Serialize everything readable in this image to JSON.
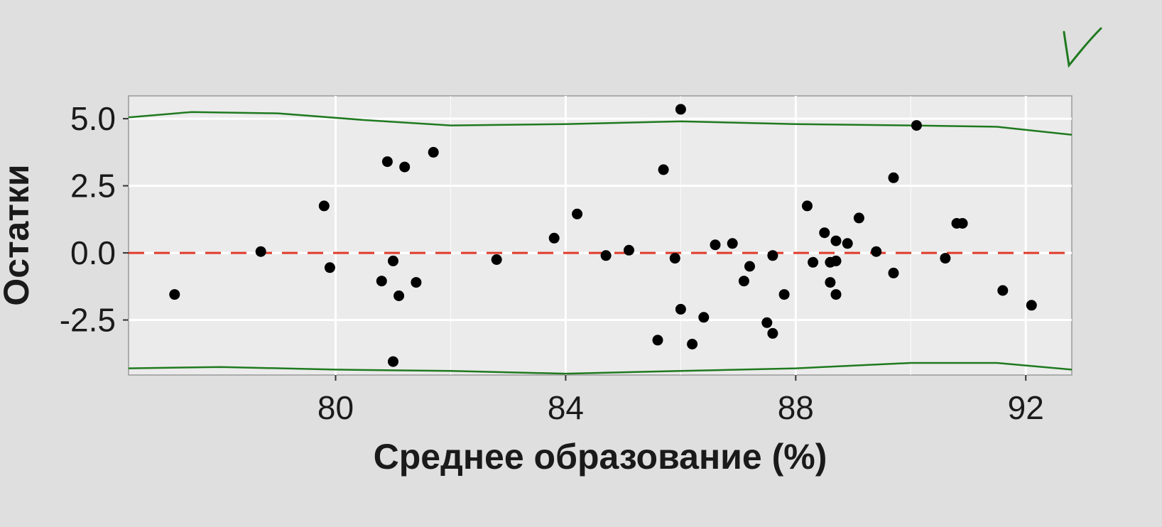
{
  "chart_data": {
    "type": "scatter",
    "title": "",
    "xlabel": "Среднее образование (%)",
    "ylabel": "Остатки",
    "xlim": [
      76.4,
      92.8
    ],
    "ylim": [
      -4.55,
      5.85
    ],
    "x_ticks": [
      80,
      84,
      88,
      92
    ],
    "x_tick_labels": [
      "80",
      "84",
      "88",
      "92"
    ],
    "y_ticks": [
      5.0,
      2.5,
      0.0,
      -2.5
    ],
    "y_tick_labels": [
      "5.0",
      "2.5",
      "0.0",
      "-2.5"
    ],
    "grid": true,
    "colors": {
      "background": "#dfdfdf",
      "panel": "#ebebeb",
      "grid": "#ffffff",
      "points": "#000000",
      "reference_line": "#e03a2a",
      "envelope": "#1f7a1f"
    },
    "reference_line": {
      "y": 0,
      "style": "dashed"
    },
    "points": [
      {
        "x": 77.2,
        "y": -1.55
      },
      {
        "x": 78.7,
        "y": 0.05
      },
      {
        "x": 79.8,
        "y": 1.75
      },
      {
        "x": 79.9,
        "y": -0.55
      },
      {
        "x": 80.8,
        "y": -1.05
      },
      {
        "x": 80.9,
        "y": 3.4
      },
      {
        "x": 81.0,
        "y": -0.3
      },
      {
        "x": 81.0,
        "y": -4.05
      },
      {
        "x": 81.1,
        "y": -1.6
      },
      {
        "x": 81.2,
        "y": 3.2
      },
      {
        "x": 81.4,
        "y": -1.1
      },
      {
        "x": 81.7,
        "y": 3.75
      },
      {
        "x": 82.8,
        "y": -0.25
      },
      {
        "x": 83.8,
        "y": 0.55
      },
      {
        "x": 84.2,
        "y": 1.45
      },
      {
        "x": 84.7,
        "y": -0.1
      },
      {
        "x": 85.1,
        "y": 0.1
      },
      {
        "x": 85.6,
        "y": -3.25
      },
      {
        "x": 85.7,
        "y": 3.1
      },
      {
        "x": 85.9,
        "y": -0.2
      },
      {
        "x": 86.0,
        "y": 5.35
      },
      {
        "x": 86.0,
        "y": -2.1
      },
      {
        "x": 86.2,
        "y": -3.4
      },
      {
        "x": 86.4,
        "y": -2.4
      },
      {
        "x": 86.6,
        "y": 0.3
      },
      {
        "x": 86.9,
        "y": 0.35
      },
      {
        "x": 87.1,
        "y": -1.05
      },
      {
        "x": 87.2,
        "y": -0.5
      },
      {
        "x": 87.5,
        "y": -2.6
      },
      {
        "x": 87.6,
        "y": -3.0
      },
      {
        "x": 87.6,
        "y": -0.1
      },
      {
        "x": 87.8,
        "y": -1.55
      },
      {
        "x": 88.2,
        "y": 1.75
      },
      {
        "x": 88.3,
        "y": -0.35
      },
      {
        "x": 88.5,
        "y": 0.75
      },
      {
        "x": 88.6,
        "y": -0.35
      },
      {
        "x": 88.6,
        "y": -1.1
      },
      {
        "x": 88.7,
        "y": -0.3
      },
      {
        "x": 88.7,
        "y": -1.55
      },
      {
        "x": 88.7,
        "y": 0.45
      },
      {
        "x": 88.9,
        "y": 0.35
      },
      {
        "x": 89.1,
        "y": 1.3
      },
      {
        "x": 89.4,
        "y": 0.05
      },
      {
        "x": 89.7,
        "y": 2.8
      },
      {
        "x": 89.7,
        "y": -0.75
      },
      {
        "x": 90.1,
        "y": 4.75
      },
      {
        "x": 90.6,
        "y": -0.2
      },
      {
        "x": 90.8,
        "y": 1.1
      },
      {
        "x": 90.9,
        "y": 1.1
      },
      {
        "x": 91.6,
        "y": -1.4
      },
      {
        "x": 92.1,
        "y": -1.95
      }
    ],
    "envelope_upper": [
      {
        "x": 76.4,
        "y": 5.05
      },
      {
        "x": 77.5,
        "y": 5.25
      },
      {
        "x": 79.0,
        "y": 5.2
      },
      {
        "x": 80.5,
        "y": 4.95
      },
      {
        "x": 82.0,
        "y": 4.75
      },
      {
        "x": 84.0,
        "y": 4.8
      },
      {
        "x": 86.0,
        "y": 4.9
      },
      {
        "x": 88.0,
        "y": 4.8
      },
      {
        "x": 90.0,
        "y": 4.75
      },
      {
        "x": 91.5,
        "y": 4.7
      },
      {
        "x": 92.8,
        "y": 4.4
      }
    ],
    "envelope_lower": [
      {
        "x": 76.4,
        "y": -4.3
      },
      {
        "x": 78.0,
        "y": -4.25
      },
      {
        "x": 80.0,
        "y": -4.35
      },
      {
        "x": 82.0,
        "y": -4.4
      },
      {
        "x": 84.0,
        "y": -4.5
      },
      {
        "x": 86.0,
        "y": -4.4
      },
      {
        "x": 88.0,
        "y": -4.3
      },
      {
        "x": 90.0,
        "y": -4.1
      },
      {
        "x": 91.5,
        "y": -4.1
      },
      {
        "x": 92.8,
        "y": -4.35
      }
    ]
  }
}
